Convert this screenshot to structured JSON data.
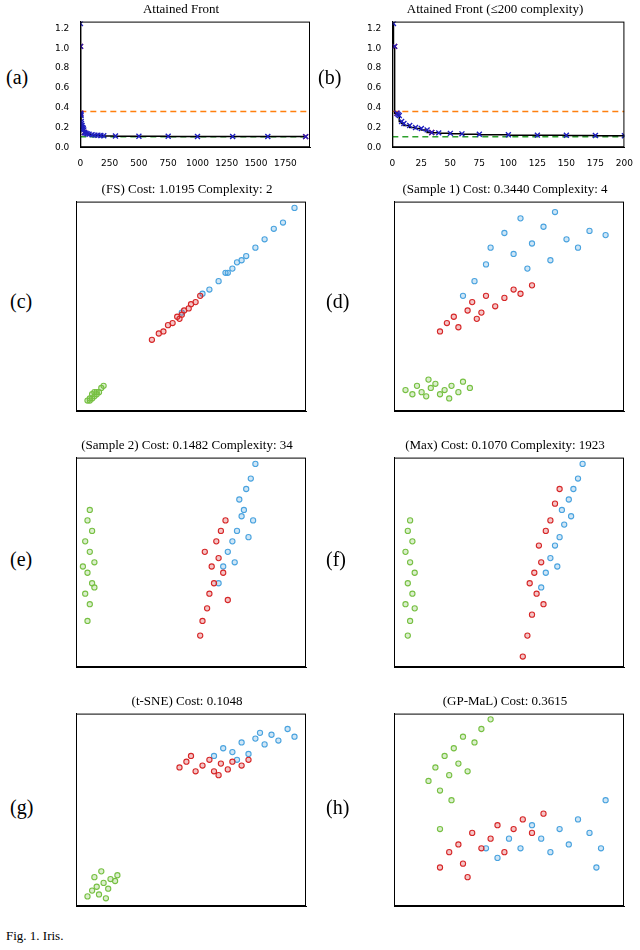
{
  "caption": "Fig. 1. Iris.",
  "chart_data": [
    {
      "type": "line",
      "panel_label": "(a)",
      "title": "Attained Front",
      "xlim": [
        0,
        1960
      ],
      "xticks": [
        0,
        250,
        500,
        750,
        1000,
        1250,
        1500,
        1750
      ],
      "ylim": [
        0,
        1.27
      ],
      "yticks": [
        {
          "value": 0,
          "label": "0.0"
        },
        0.2,
        0.4,
        0.6,
        0.8,
        {
          "value": 1,
          "label": "1.0"
        },
        1.2
      ],
      "grid": false,
      "series": [
        {
          "type": "line",
          "color": "#000000",
          "line_style": "solid",
          "x": [
            1,
            2,
            4,
            5,
            6,
            8,
            10,
            15,
            20,
            25,
            30,
            34,
            40,
            50,
            60,
            75,
            100,
            125,
            150,
            175,
            200,
            300,
            500,
            750,
            1000,
            1300,
            1600,
            1923
          ],
          "values": [
            1.25,
            1.0195,
            0.344,
            0.33,
            0.32,
            0.26,
            0.24,
            0.22,
            0.2,
            0.19,
            0.175,
            0.1482,
            0.145,
            0.14,
            0.135,
            0.13,
            0.125,
            0.122,
            0.12,
            0.118,
            0.116,
            0.113,
            0.111,
            0.11,
            0.109,
            0.108,
            0.1075,
            0.107
          ]
        },
        {
          "type": "scatter",
          "color": "#1f1fbf",
          "marker": "x",
          "x": [
            1,
            2,
            4,
            5,
            6,
            8,
            10,
            15,
            20,
            25,
            30,
            34,
            40,
            50,
            60,
            75,
            100,
            125,
            150,
            175,
            200,
            300,
            500,
            750,
            1000,
            1300,
            1600,
            1923
          ],
          "values": [
            1.25,
            1.0195,
            0.344,
            0.33,
            0.32,
            0.26,
            0.24,
            0.22,
            0.2,
            0.19,
            0.175,
            0.1482,
            0.145,
            0.14,
            0.135,
            0.13,
            0.125,
            0.122,
            0.12,
            0.118,
            0.116,
            0.113,
            0.111,
            0.11,
            0.109,
            0.108,
            0.1075,
            0.107
          ]
        },
        {
          "type": "scatter",
          "color": "#e41a1c",
          "marker": "x",
          "x": [
            2,
            4,
            34,
            1923
          ],
          "values": [
            1.0195,
            0.344,
            0.1482,
            0.107
          ]
        },
        {
          "type": "line",
          "color": "#ff7f0e",
          "line_style": "dashed",
          "x": [
            0,
            1960
          ],
          "values": [
            0.3615,
            0.3615
          ]
        },
        {
          "type": "line",
          "color": "#2ca02c",
          "line_style": "dashed",
          "x": [
            0,
            1960
          ],
          "values": [
            0.1048,
            0.1048
          ]
        }
      ]
    },
    {
      "type": "line",
      "panel_label": "(b)",
      "title": "Attained Front (≤200 complexity)",
      "xlim": [
        0,
        200
      ],
      "xticks": [
        0,
        25,
        50,
        75,
        100,
        125,
        150,
        175,
        200
      ],
      "ylim": [
        0,
        1.27
      ],
      "yticks": [
        {
          "value": 0,
          "label": "0.0"
        },
        0.2,
        0.4,
        0.6,
        0.8,
        {
          "value": 1,
          "label": "1.0"
        },
        1.2
      ],
      "grid": false,
      "series": [
        {
          "type": "line",
          "color": "#000000",
          "line_style": "solid",
          "x": [
            1,
            2,
            4,
            5,
            6,
            8,
            10,
            15,
            20,
            25,
            30,
            34,
            40,
            50,
            60,
            75,
            100,
            125,
            150,
            175,
            200
          ],
          "values": [
            1.25,
            1.0195,
            0.344,
            0.33,
            0.32,
            0.26,
            0.24,
            0.22,
            0.2,
            0.19,
            0.175,
            0.1482,
            0.145,
            0.14,
            0.135,
            0.13,
            0.125,
            0.122,
            0.12,
            0.118,
            0.116
          ]
        },
        {
          "type": "scatter",
          "color": "#1f1fbf",
          "marker": "x",
          "x": [
            1,
            2,
            4,
            5,
            6,
            8,
            10,
            15,
            20,
            25,
            30,
            34,
            40,
            50,
            60,
            75,
            100,
            125,
            150,
            175,
            200
          ],
          "values": [
            1.25,
            1.0195,
            0.344,
            0.33,
            0.32,
            0.26,
            0.24,
            0.22,
            0.2,
            0.19,
            0.175,
            0.1482,
            0.145,
            0.14,
            0.135,
            0.13,
            0.125,
            0.122,
            0.12,
            0.118,
            0.116
          ]
        },
        {
          "type": "scatter",
          "color": "#e41a1c",
          "marker": "x",
          "x": [
            2,
            4,
            34
          ],
          "values": [
            1.0195,
            0.344,
            0.1482
          ]
        },
        {
          "type": "line",
          "color": "#ff7f0e",
          "line_style": "dashed",
          "x": [
            0,
            200
          ],
          "values": [
            0.3615,
            0.3615
          ]
        },
        {
          "type": "line",
          "color": "#2ca02c",
          "line_style": "dashed",
          "x": [
            0,
            200
          ],
          "values": [
            0.1048,
            0.1048
          ]
        }
      ]
    },
    {
      "type": "scatter",
      "panel_label": "(c)",
      "title": "(FS) Cost: 1.0195 Complexity: 2",
      "xlim": [
        0,
        100
      ],
      "ylim": [
        0,
        100
      ],
      "tick_labels": false,
      "grid": false,
      "series": [
        {
          "color": "#77c043",
          "marker": "circle",
          "x": [
            5,
            6,
            7,
            7,
            8,
            9,
            10,
            11,
            12,
            6,
            9,
            8
          ],
          "values": [
            5,
            6,
            6,
            8,
            7,
            9,
            9,
            11,
            12,
            5,
            8,
            9
          ]
        },
        {
          "color": "#d62728",
          "marker": "circle",
          "x": [
            33,
            36,
            38,
            40,
            42,
            44,
            45,
            47,
            49,
            50,
            52,
            54,
            46
          ],
          "values": [
            34,
            37,
            38,
            41,
            42,
            45,
            44,
            48,
            49,
            51,
            52,
            55,
            46
          ]
        },
        {
          "color": "#4aa3df",
          "marker": "circle",
          "x": [
            46,
            55,
            58,
            62,
            65,
            68,
            70,
            74,
            78,
            82,
            86,
            90,
            95,
            66,
            72
          ],
          "values": [
            47,
            56,
            58,
            62,
            66,
            68,
            71,
            74,
            78,
            82,
            87,
            90,
            97,
            66,
            72
          ]
        }
      ]
    },
    {
      "type": "scatter",
      "panel_label": "(d)",
      "title": "(Sample 1) Cost: 0.3440 Complexity: 4",
      "xlim": [
        0,
        100
      ],
      "ylim": [
        0,
        100
      ],
      "tick_labels": false,
      "grid": false,
      "series": [
        {
          "color": "#77c043",
          "marker": "circle",
          "x": [
            5,
            8,
            10,
            12,
            14,
            16,
            18,
            20,
            22,
            25,
            28,
            30,
            33,
            15,
            24
          ],
          "values": [
            10,
            8,
            12,
            9,
            7,
            11,
            13,
            8,
            10,
            12,
            9,
            14,
            11,
            15,
            6
          ]
        },
        {
          "color": "#d62728",
          "marker": "circle",
          "x": [
            20,
            23,
            26,
            28,
            32,
            34,
            38,
            40,
            44,
            48,
            52,
            55,
            60,
            36
          ],
          "values": [
            38,
            42,
            45,
            40,
            48,
            52,
            47,
            55,
            50,
            54,
            58,
            56,
            60,
            44
          ]
        },
        {
          "color": "#4aa3df",
          "marker": "circle",
          "x": [
            30,
            35,
            40,
            42,
            48,
            52,
            55,
            60,
            65,
            70,
            75,
            80,
            85,
            92,
            58,
            68
          ],
          "values": [
            55,
            62,
            70,
            78,
            85,
            75,
            92,
            80,
            88,
            95,
            82,
            78,
            86,
            84,
            68,
            72
          ]
        }
      ]
    },
    {
      "type": "scatter",
      "panel_label": "(e)",
      "title": "(Sample 2) Cost: 0.1482 Complexity: 34",
      "xlim": [
        0,
        100
      ],
      "ylim": [
        0,
        100
      ],
      "tick_labels": false,
      "grid": false,
      "series": [
        {
          "color": "#77c043",
          "marker": "circle",
          "x": [
            5,
            6,
            4,
            7,
            5,
            8,
            6,
            4,
            7,
            5,
            6,
            8,
            3
          ],
          "values": [
            22,
            30,
            35,
            40,
            45,
            50,
            55,
            60,
            65,
            70,
            75,
            38,
            48
          ]
        },
        {
          "color": "#d62728",
          "marker": "circle",
          "x": [
            54,
            55,
            57,
            58,
            60,
            59,
            62,
            61,
            63,
            65,
            64,
            56,
            66
          ],
          "values": [
            15,
            22,
            28,
            35,
            40,
            48,
            52,
            60,
            65,
            70,
            45,
            55,
            32
          ]
        },
        {
          "color": "#4aa3df",
          "marker": "circle",
          "x": [
            62,
            64,
            66,
            68,
            70,
            72,
            71,
            74,
            76,
            78,
            69,
            75,
            73,
            77
          ],
          "values": [
            40,
            48,
            55,
            60,
            65,
            72,
            80,
            85,
            90,
            97,
            50,
            62,
            75,
            70
          ]
        }
      ]
    },
    {
      "type": "scatter",
      "panel_label": "(f)",
      "title": "(Max) Cost: 0.1070 Complexity: 1923",
      "xlim": [
        0,
        100
      ],
      "ylim": [
        0,
        100
      ],
      "tick_labels": false,
      "grid": false,
      "series": [
        {
          "color": "#77c043",
          "marker": "circle",
          "x": [
            6,
            7,
            5,
            8,
            6,
            9,
            7,
            5,
            8,
            6,
            7,
            9
          ],
          "values": [
            15,
            22,
            30,
            35,
            40,
            45,
            50,
            55,
            60,
            65,
            70,
            28
          ]
        },
        {
          "color": "#d62728",
          "marker": "circle",
          "x": [
            56,
            58,
            60,
            62,
            61,
            64,
            63,
            66,
            68,
            70,
            72,
            59,
            65
          ],
          "values": [
            5,
            15,
            25,
            35,
            45,
            50,
            58,
            65,
            70,
            78,
            85,
            40,
            30
          ]
        },
        {
          "color": "#4aa3df",
          "marker": "circle",
          "x": [
            64,
            66,
            68,
            70,
            72,
            74,
            73,
            76,
            78,
            80,
            82,
            71,
            77
          ],
          "values": [
            38,
            45,
            52,
            58,
            62,
            68,
            75,
            80,
            85,
            90,
            97,
            48,
            72
          ]
        }
      ]
    },
    {
      "type": "scatter",
      "panel_label": "(g)",
      "title": "(t-SNE) Cost: 0.1048",
      "xlim": [
        0,
        100
      ],
      "ylim": [
        0,
        100
      ],
      "tick_labels": false,
      "grid": false,
      "series": [
        {
          "color": "#77c043",
          "marker": "circle",
          "x": [
            5,
            7,
            9,
            10,
            12,
            14,
            15,
            8,
            11,
            17,
            13,
            18
          ],
          "values": [
            5,
            8,
            10,
            6,
            12,
            9,
            14,
            15,
            18,
            13,
            4,
            16
          ]
        },
        {
          "color": "#d62728",
          "marker": "circle",
          "x": [
            45,
            48,
            52,
            55,
            58,
            60,
            63,
            66,
            68,
            72,
            75,
            50,
            62
          ],
          "values": [
            72,
            75,
            70,
            73,
            76,
            70,
            74,
            71,
            75,
            73,
            76,
            78,
            68
          ]
        },
        {
          "color": "#4aa3df",
          "marker": "circle",
          "x": [
            60,
            64,
            68,
            72,
            75,
            78,
            82,
            85,
            88,
            92,
            95,
            70,
            80
          ],
          "values": [
            78,
            82,
            80,
            85,
            79,
            87,
            84,
            89,
            86,
            92,
            88,
            76,
            90
          ]
        }
      ]
    },
    {
      "type": "scatter",
      "panel_label": "(h)",
      "title": "(GP-MaL) Cost: 0.3615",
      "xlim": [
        0,
        100
      ],
      "ylim": [
        0,
        100
      ],
      "tick_labels": false,
      "grid": false,
      "series": [
        {
          "color": "#77c043",
          "marker": "circle",
          "x": [
            15,
            18,
            20,
            22,
            24,
            26,
            28,
            30,
            32,
            35,
            38,
            42,
            25,
            20
          ],
          "values": [
            65,
            72,
            60,
            78,
            68,
            82,
            74,
            88,
            70,
            85,
            92,
            97,
            55,
            40
          ]
        },
        {
          "color": "#d62728",
          "marker": "circle",
          "x": [
            20,
            24,
            28,
            30,
            34,
            38,
            42,
            45,
            48,
            52,
            56,
            60,
            65,
            32
          ],
          "values": [
            20,
            28,
            32,
            22,
            38,
            30,
            35,
            42,
            28,
            40,
            45,
            38,
            48,
            15
          ]
        },
        {
          "color": "#4aa3df",
          "marker": "circle",
          "x": [
            40,
            45,
            50,
            55,
            60,
            64,
            68,
            72,
            76,
            80,
            85,
            90,
            92,
            88
          ],
          "values": [
            30,
            25,
            35,
            30,
            42,
            35,
            28,
            40,
            32,
            45,
            38,
            30,
            55,
            20
          ]
        }
      ]
    }
  ]
}
